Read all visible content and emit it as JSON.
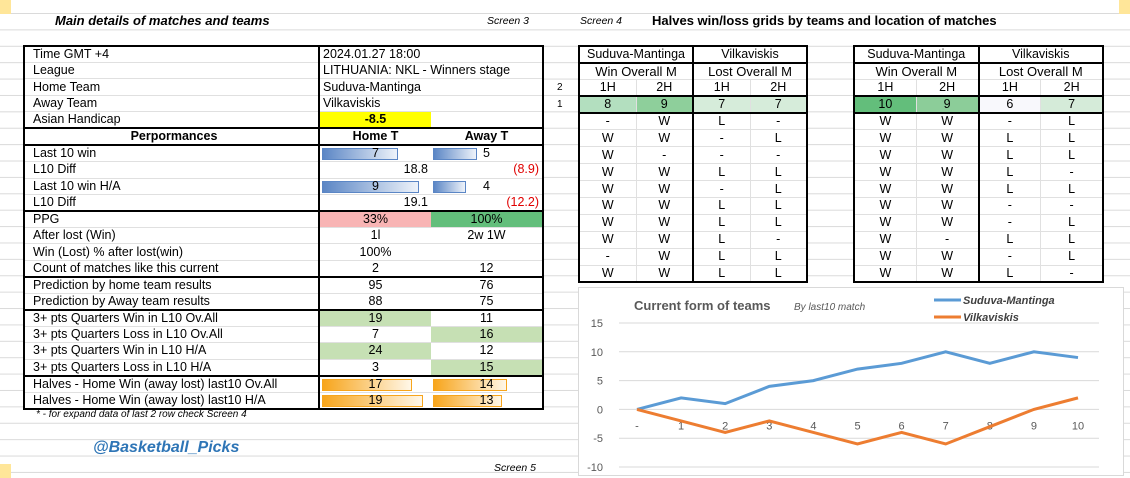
{
  "header": {
    "main_title": "Main details of matches and teams",
    "screen3": "Screen 3",
    "screen4": "Screen 4",
    "grids_title": "Halves win/loss grids by teams and location of matches",
    "screen5": "Screen 5"
  },
  "info": [
    {
      "label": "Time  GMT +4",
      "value": "2024.01.27 18:00"
    },
    {
      "label": "League",
      "value": "LITHUANIA: NKL - Winners stage"
    },
    {
      "label": "Home Team",
      "value": "Suduva-Mantinga"
    },
    {
      "label": "Away Team",
      "value": "Vilkaviskis"
    },
    {
      "label": "Asian Handicap",
      "value": "-8.5"
    }
  ],
  "perf_header": {
    "label": "Perpormances",
    "home": "Home T",
    "away": "Away T"
  },
  "perf": [
    {
      "label": "Last 10  win",
      "home": "7",
      "away": "5",
      "bar": "blue"
    },
    {
      "label": "L10 Diff",
      "home": "18.8",
      "away": "(8.9)"
    },
    {
      "label": "Last 10  win H/A",
      "home": "9",
      "away": "4",
      "bar": "blue"
    },
    {
      "label": "L10 Diff",
      "home": "19.1",
      "away": "(12.2)"
    },
    {
      "label": "PPG",
      "home": "33%",
      "away": "100%"
    },
    {
      "label": "After lost (Win)",
      "home": "1l",
      "away": "2w 1W"
    },
    {
      "label": "Win (Lost) % after lost(win)",
      "home": "100%",
      "away": ""
    },
    {
      "label": "Count of matches like this current",
      "home": "2",
      "away": "12"
    },
    {
      "label": "Prediction by home team results",
      "home": "95",
      "away": "76"
    },
    {
      "label": "Prediction by Away team results",
      "home": "88",
      "away": "75"
    },
    {
      "label": "3+ pts Quarters Win in L10 Ov.All",
      "home": "19",
      "away": "11"
    },
    {
      "label": "3+ pts Quarters Loss in L10 Ov.All",
      "home": "7",
      "away": "16"
    },
    {
      "label": "3+ pts Quarters Win in L10 H/A",
      "home": "24",
      "away": "12"
    },
    {
      "label": "3+ pts Quarters Loss in L10 H/A",
      "home": "3",
      "away": "15"
    },
    {
      "label": "Halves - Home Win  (away lost) last10 Ov.All",
      "home": "17",
      "away": "14",
      "bar": "orange"
    },
    {
      "label": "Halves - Home Win  (away lost) last10 H/A",
      "home": "19",
      "away": "13",
      "bar": "orange"
    }
  ],
  "footnote": "* - for expand data of last 2 row check Screen 4",
  "brand": "@Basketball_Picks",
  "colors": {
    "ah_highlight": "#ffff00",
    "ppg_home": "#f8b4b4",
    "ppg_away": "#63be7b",
    "quarter_green": "#c6e0b4",
    "bar_blue": "#5b86c5",
    "bar_orange": "#f7a51c",
    "line_home": "#5b9bd5",
    "line_away": "#ed7d31"
  },
  "row_numbers": [
    "2",
    "1"
  ],
  "grids": [
    {
      "home_team": "Suduva-Mantinga",
      "away_team": "Vilkaviskis",
      "home_sub": "Win Overall M",
      "away_sub": "Lost Overall M",
      "halves": [
        "1H",
        "2H",
        "1H",
        "2H"
      ],
      "counts": [
        "8",
        "9",
        "7",
        "7"
      ],
      "count_colors": [
        "#b3dfbf",
        "#8ecf9b",
        "#d6ecda",
        "#d6ecda"
      ],
      "rows": [
        [
          "-",
          "W",
          "L",
          "-"
        ],
        [
          "W",
          "W",
          "-",
          "L"
        ],
        [
          "W",
          "-",
          "-",
          "-"
        ],
        [
          "W",
          "W",
          "L",
          "L"
        ],
        [
          "W",
          "W",
          "-",
          "L"
        ],
        [
          "W",
          "W",
          "L",
          "L"
        ],
        [
          "W",
          "W",
          "L",
          "L"
        ],
        [
          "W",
          "W",
          "L",
          "-"
        ],
        [
          "-",
          "W",
          "L",
          "L"
        ],
        [
          "W",
          "W",
          "L",
          "L"
        ]
      ]
    },
    {
      "home_team": "Suduva-Mantinga",
      "away_team": "Vilkaviskis",
      "home_sub": "Win Overall M",
      "away_sub": "Lost Overall M",
      "halves": [
        "1H",
        "2H",
        "1H",
        "2H"
      ],
      "counts": [
        "10",
        "9",
        "6",
        "7"
      ],
      "count_colors": [
        "#63be7b",
        "#8ccd99",
        "#f8f8fc",
        "#d5ebd9"
      ],
      "rows": [
        [
          "W",
          "W",
          "-",
          "L"
        ],
        [
          "W",
          "W",
          "L",
          "L"
        ],
        [
          "W",
          "W",
          "L",
          "L"
        ],
        [
          "W",
          "W",
          "L",
          "-"
        ],
        [
          "W",
          "W",
          "L",
          "L"
        ],
        [
          "W",
          "W",
          "-",
          "-"
        ],
        [
          "W",
          "W",
          "-",
          "L"
        ],
        [
          "W",
          "-",
          "L",
          "L"
        ],
        [
          "W",
          "W",
          "-",
          "L"
        ],
        [
          "W",
          "W",
          "L",
          "-"
        ]
      ]
    }
  ],
  "chart_data": {
    "type": "line",
    "title": "Current form of  teams",
    "subtitle": "By last10 match",
    "categories": [
      "-",
      "1",
      "2",
      "3",
      "4",
      "5",
      "6",
      "7",
      "8",
      "9",
      "10"
    ],
    "ylim": [
      -10,
      15
    ],
    "yticks": [
      "15",
      "10",
      "5",
      "0",
      "-5",
      "-10"
    ],
    "grid": true,
    "legend": "top-right",
    "series": [
      {
        "name": "Suduva-Mantinga",
        "values": [
          0,
          2,
          1,
          4,
          5,
          7,
          8,
          10,
          8,
          10,
          9
        ]
      },
      {
        "name": "Vilkaviskis",
        "values": [
          0,
          -2,
          -4,
          -2,
          -4,
          -6,
          -4,
          -6,
          -3,
          0,
          2
        ]
      }
    ]
  }
}
